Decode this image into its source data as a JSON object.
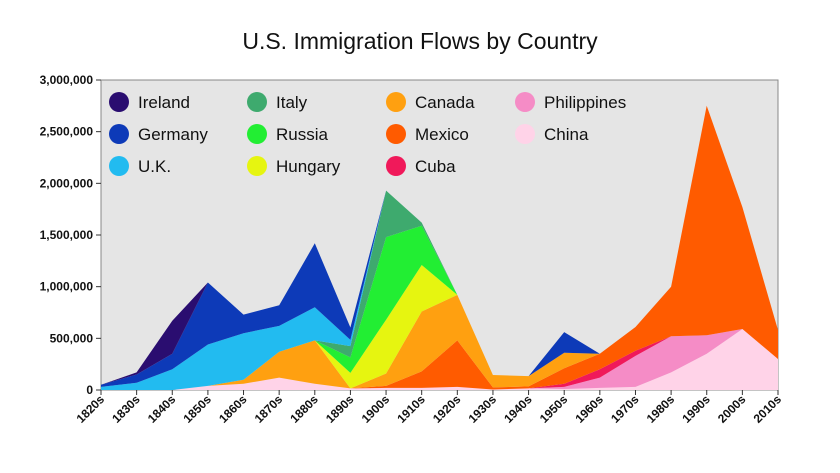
{
  "chart_data": {
    "type": "area",
    "stacked": true,
    "title": "U.S. Immigration Flows by Country",
    "xlabel": "",
    "ylabel": "",
    "ylim": [
      0,
      3000000
    ],
    "yticks": [
      0,
      500000,
      1000000,
      1500000,
      2000000,
      2500000,
      3000000
    ],
    "ytick_labels": [
      "0",
      "500,000",
      "1,000,000",
      "1,500,000",
      "2,000,000",
      "2,500,000",
      "3,000,000"
    ],
    "grid": false,
    "legend_position": "top-left",
    "categories": [
      "1820s",
      "1830s",
      "1840s",
      "1850s",
      "1860s",
      "1870s",
      "1880s",
      "1890s",
      "1900s",
      "1910s",
      "1920s",
      "1930s",
      "1940s",
      "1950s",
      "1960s",
      "1970s",
      "1980s",
      "1990s",
      "2000s",
      "2010s"
    ],
    "series": [
      {
        "name": "China",
        "color": "#ffd3e8",
        "values": [
          0,
          0,
          0,
          40000,
          60000,
          120000,
          60000,
          15000,
          20000,
          20000,
          30000,
          5000,
          15000,
          10000,
          20000,
          30000,
          170000,
          350000,
          590000,
          300000
        ]
      },
      {
        "name": "Philippines",
        "color": "#f58cc6",
        "values": [
          0,
          0,
          0,
          0,
          0,
          0,
          0,
          0,
          0,
          0,
          0,
          0,
          0,
          20000,
          100000,
          300000,
          350000,
          180000,
          0,
          0
        ]
      },
      {
        "name": "Cuba",
        "color": "#f0195a",
        "values": [
          0,
          0,
          0,
          0,
          0,
          0,
          0,
          0,
          0,
          0,
          0,
          0,
          0,
          30000,
          80000,
          50000,
          0,
          0,
          0,
          0
        ]
      },
      {
        "name": "Mexico",
        "color": "#ff5b00",
        "values": [
          0,
          0,
          0,
          0,
          0,
          0,
          0,
          0,
          20000,
          160000,
          450000,
          20000,
          20000,
          150000,
          150000,
          230000,
          480000,
          2220000,
          1180000,
          280000
        ]
      },
      {
        "name": "Canada",
        "color": "#ffa010",
        "values": [
          0,
          0,
          0,
          0,
          40000,
          250000,
          420000,
          0,
          120000,
          580000,
          440000,
          120000,
          100000,
          150000,
          0,
          0,
          0,
          0,
          0,
          0
        ]
      },
      {
        "name": "Hungary",
        "color": "#e6f510",
        "values": [
          0,
          0,
          0,
          0,
          0,
          0,
          0,
          150000,
          520000,
          450000,
          0,
          0,
          0,
          0,
          0,
          0,
          0,
          0,
          0,
          0
        ]
      },
      {
        "name": "Russia",
        "color": "#22ee33",
        "values": [
          0,
          0,
          0,
          0,
          0,
          0,
          0,
          150000,
          800000,
          380000,
          0,
          0,
          0,
          0,
          0,
          0,
          0,
          0,
          0,
          0
        ]
      },
      {
        "name": "Italy",
        "color": "#3eaa6e",
        "values": [
          0,
          0,
          0,
          0,
          0,
          0,
          0,
          110000,
          450000,
          30000,
          0,
          0,
          0,
          0,
          0,
          0,
          0,
          0,
          0,
          0
        ]
      },
      {
        "name": "U.K.",
        "color": "#22bbf0",
        "values": [
          30000,
          70000,
          200000,
          400000,
          450000,
          250000,
          320000,
          60000,
          0,
          0,
          0,
          0,
          0,
          0,
          0,
          0,
          0,
          0,
          0,
          0
        ]
      },
      {
        "name": "Germany",
        "color": "#0d3ab8",
        "values": [
          20000,
          80000,
          150000,
          600000,
          180000,
          200000,
          620000,
          120000,
          0,
          0,
          0,
          0,
          0,
          200000,
          0,
          0,
          0,
          0,
          0,
          0
        ]
      },
      {
        "name": "Ireland",
        "color": "#2a0d70",
        "values": [
          0,
          20000,
          320000,
          0,
          0,
          0,
          0,
          0,
          0,
          0,
          0,
          0,
          0,
          0,
          0,
          0,
          0,
          0,
          0,
          0
        ]
      }
    ],
    "legend_order": [
      "Ireland",
      "Germany",
      "U.K.",
      "Italy",
      "Russia",
      "Hungary",
      "Canada",
      "Mexico",
      "Cuba",
      "Philippines",
      "China"
    ]
  }
}
